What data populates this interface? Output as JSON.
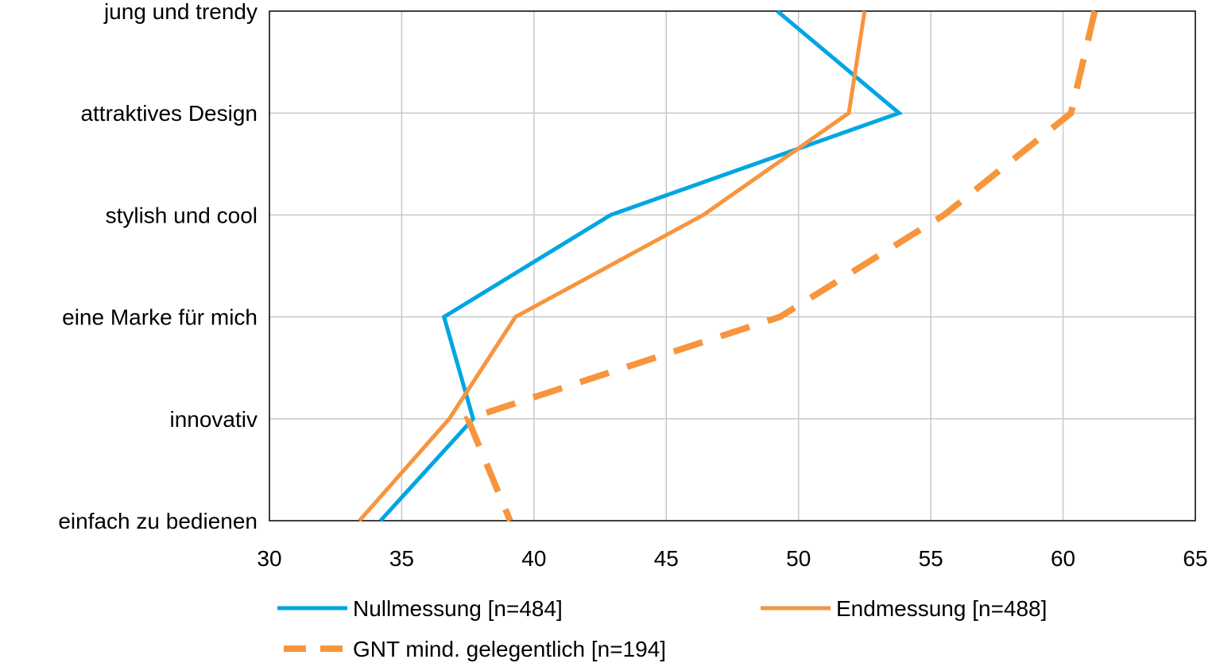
{
  "chart_data": {
    "type": "line",
    "orientation": "horizontal",
    "title": "",
    "xlabel": "",
    "ylabel": "",
    "categories": [
      "jung und trendy",
      "attraktives Design",
      "stylish und cool",
      "eine Marke für mich",
      "innovativ",
      "einfach zu bedienen"
    ],
    "xlim": [
      30,
      65
    ],
    "x_ticks": [
      30,
      35,
      40,
      45,
      50,
      55,
      60,
      65
    ],
    "grid": true,
    "legend_position": "bottom",
    "series": [
      {
        "name": "Nullmessung [n=484]",
        "color": "#00a6e3",
        "dashed": false,
        "values": [
          49.2,
          53.8,
          42.9,
          36.6,
          37.7,
          34.2
        ]
      },
      {
        "name": "Endmessung [n=488]",
        "color": "#f7953e",
        "dashed": false,
        "values": [
          52.5,
          51.9,
          46.4,
          39.3,
          36.8,
          33.4
        ]
      },
      {
        "name": "GNT mind. gelegentlich [n=194]",
        "color": "#f7953e",
        "dashed": true,
        "values": [
          61.2,
          60.3,
          55.5,
          49.3,
          37.5,
          39.1
        ]
      }
    ]
  }
}
